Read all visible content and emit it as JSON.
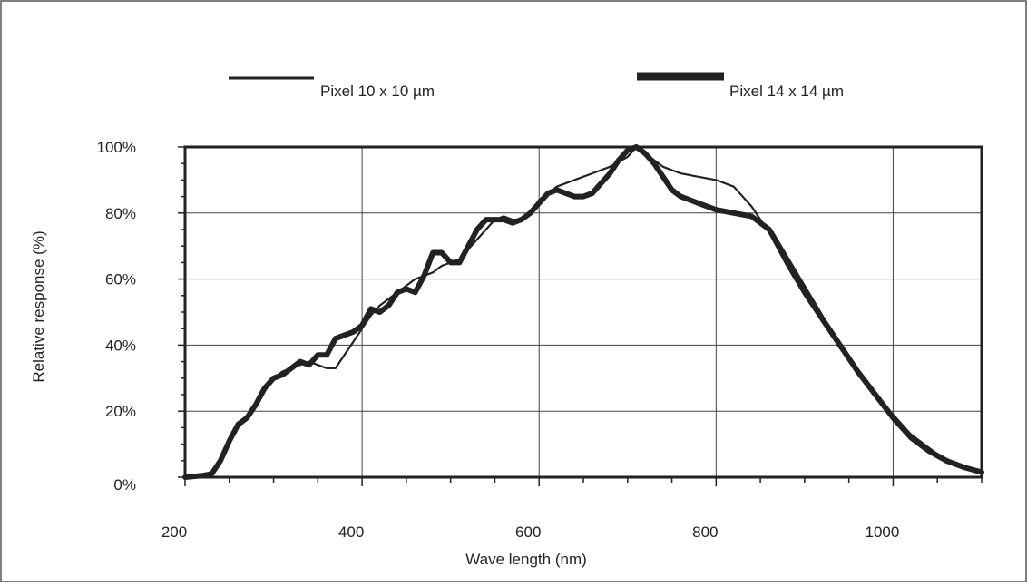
{
  "chart_data": {
    "type": "line",
    "title": "",
    "xlabel": "Wave length (nm)",
    "ylabel": "Relative response (%)",
    "xlim": [
      200,
      1100
    ],
    "ylim": [
      0,
      100
    ],
    "x_ticks": [
      200,
      400,
      600,
      800,
      1000
    ],
    "x_tick_labels": [
      "200",
      "400",
      "600",
      "800",
      "1000"
    ],
    "y_ticks": [
      0,
      20,
      40,
      60,
      80,
      100
    ],
    "y_tick_labels": [
      "0%",
      "20%",
      "40%",
      "60%",
      "80%",
      "100%"
    ],
    "grid": true,
    "legend_position": "top",
    "series": [
      {
        "name": "Pixel 10 x 10 µm",
        "color": "#222222",
        "style": "thin",
        "x": [
          200,
          220,
          230,
          240,
          250,
          260,
          270,
          280,
          290,
          300,
          310,
          320,
          330,
          340,
          350,
          360,
          370,
          380,
          390,
          400,
          410,
          420,
          430,
          440,
          450,
          460,
          470,
          480,
          490,
          500,
          510,
          520,
          530,
          540,
          550,
          560,
          570,
          580,
          590,
          600,
          620,
          640,
          660,
          680,
          700,
          710,
          720,
          740,
          760,
          780,
          800,
          820,
          840,
          860,
          880,
          900,
          920,
          940,
          960,
          980,
          1000,
          1020,
          1040,
          1060,
          1080,
          1100
        ],
        "y": [
          0,
          0.5,
          1,
          5,
          11,
          16,
          18,
          22,
          27,
          30,
          32,
          33,
          34,
          35,
          34,
          33,
          33,
          37,
          41,
          45,
          49,
          52,
          54,
          56,
          58,
          60,
          61,
          62,
          64,
          65,
          66,
          69,
          72,
          75,
          78,
          79,
          78,
          78,
          80,
          84,
          88,
          90,
          92,
          94,
          97,
          100,
          98,
          94,
          92,
          91,
          90,
          88,
          82,
          74,
          64,
          55,
          47,
          39,
          32,
          25,
          19,
          13,
          9,
          5,
          3,
          1.5
        ]
      },
      {
        "name": "Pixel 14 x 14 µm",
        "color": "#222222",
        "style": "thick",
        "x": [
          200,
          220,
          230,
          240,
          250,
          260,
          270,
          280,
          290,
          300,
          310,
          320,
          330,
          340,
          350,
          360,
          370,
          380,
          390,
          400,
          410,
          420,
          430,
          440,
          450,
          460,
          470,
          480,
          490,
          500,
          510,
          520,
          530,
          540,
          550,
          560,
          570,
          580,
          590,
          600,
          610,
          620,
          630,
          640,
          650,
          660,
          670,
          680,
          690,
          700,
          710,
          720,
          730,
          740,
          750,
          760,
          780,
          800,
          820,
          840,
          860,
          880,
          900,
          920,
          940,
          960,
          980,
          1000,
          1020,
          1040,
          1060,
          1080,
          1100
        ],
        "y": [
          0,
          0.5,
          1,
          5,
          11,
          16,
          18,
          22,
          27,
          30,
          31,
          33,
          35,
          34,
          37,
          37,
          42,
          43,
          44,
          46,
          51,
          50,
          52,
          56,
          57,
          56,
          61,
          68,
          68,
          65,
          65,
          70,
          75,
          78,
          78,
          78,
          77,
          78,
          80,
          83,
          86,
          87,
          86,
          85,
          85,
          86,
          89,
          92,
          96,
          99,
          100,
          98,
          95,
          91,
          87,
          85,
          83,
          81,
          80,
          79,
          75,
          66,
          57,
          48,
          40,
          32,
          25,
          18,
          12,
          8,
          5,
          3,
          1.5
        ]
      }
    ]
  }
}
